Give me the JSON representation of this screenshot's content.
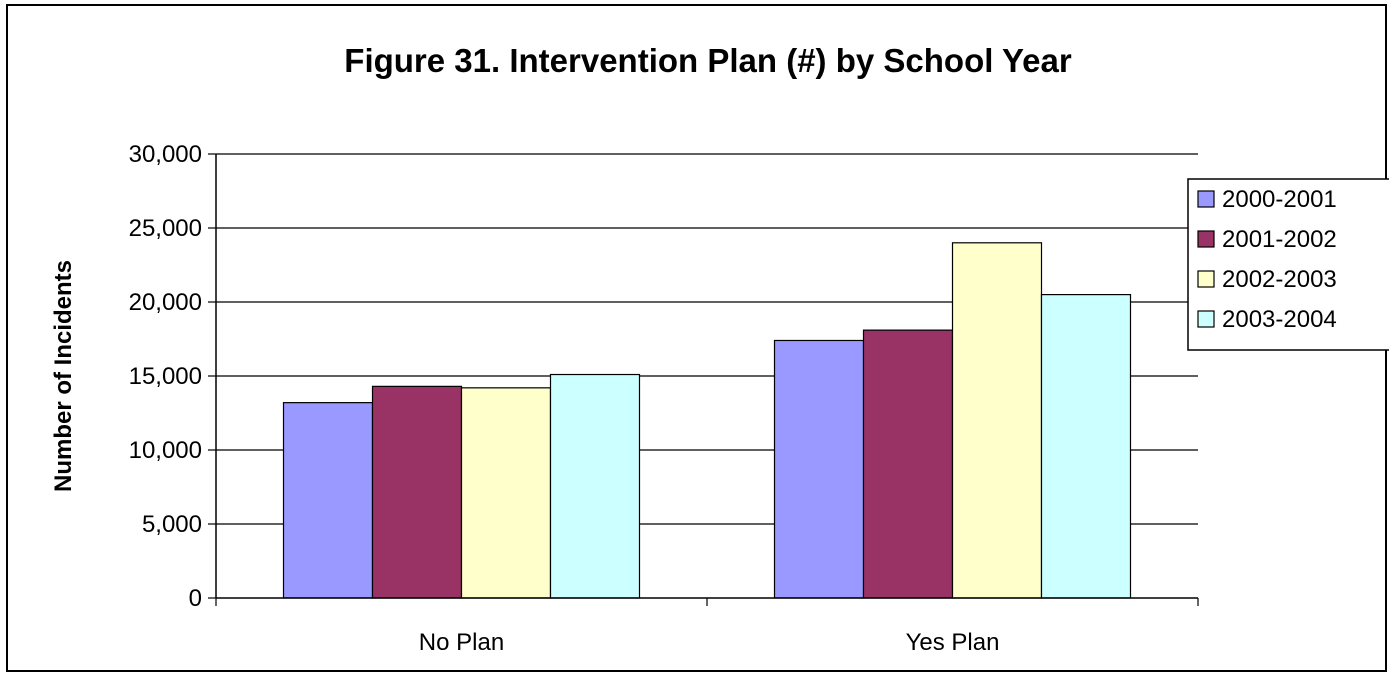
{
  "chart_data": {
    "type": "bar",
    "title": "Figure 31. Intervention Plan (#) by School Year",
    "xlabel": "",
    "ylabel": "Number of Incidents",
    "categories": [
      "No Plan",
      "Yes Plan"
    ],
    "series": [
      {
        "name": "2000-2001",
        "values": [
          13200,
          17400
        ],
        "color": "#9999FF"
      },
      {
        "name": "2001-2002",
        "values": [
          14300,
          18100
        ],
        "color": "#993366"
      },
      {
        "name": "2002-2003",
        "values": [
          14200,
          24000
        ],
        "color": "#FFFFCC"
      },
      {
        "name": "2003-2004",
        "values": [
          15100,
          20500
        ],
        "color": "#CCFFFF"
      }
    ],
    "ylim": [
      0,
      30000
    ],
    "yticks": [
      0,
      5000,
      10000,
      15000,
      20000,
      25000,
      30000
    ],
    "ytick_labels": [
      "0",
      "5,000",
      "10,000",
      "15,000",
      "20,000",
      "25,000",
      "30,000"
    ],
    "grid": true,
    "legend_position": "right"
  }
}
